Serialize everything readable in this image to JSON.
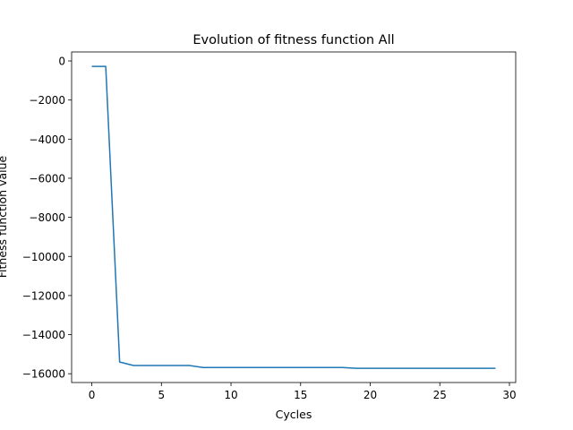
{
  "chart_data": {
    "type": "line",
    "title": "Evolution of fitness function All",
    "xlabel": "Cycles",
    "ylabel": "Fitness function value",
    "xlim": [
      -1.45,
      30.45
    ],
    "ylim": [
      -16450,
      460
    ],
    "xticks": [
      0,
      5,
      10,
      15,
      20,
      25,
      30
    ],
    "yticks": [
      0,
      -2000,
      -4000,
      -6000,
      -8000,
      -10000,
      -12000,
      -14000,
      -16000
    ],
    "xtick_labels": [
      "0",
      "5",
      "10",
      "15",
      "20",
      "25",
      "30"
    ],
    "ytick_labels": [
      "0",
      "−2000",
      "−4000",
      "−6000",
      "−8000",
      "−10000",
      "−12000",
      "−14000",
      "−16000"
    ],
    "grid": false,
    "line_color": "#1f77b4",
    "series": [
      {
        "x": [
          0,
          1,
          2,
          3,
          4,
          5,
          6,
          7,
          8,
          9,
          10,
          11,
          12,
          13,
          14,
          15,
          16,
          17,
          18,
          19,
          20,
          21,
          22,
          23,
          24,
          25,
          26,
          27,
          28,
          29
        ],
        "y": [
          -280,
          -280,
          -15400,
          -15580,
          -15580,
          -15580,
          -15580,
          -15580,
          -15680,
          -15680,
          -15680,
          -15680,
          -15680,
          -15680,
          -15680,
          -15680,
          -15680,
          -15680,
          -15680,
          -15720,
          -15720,
          -15720,
          -15720,
          -15720,
          -15720,
          -15720,
          -15720,
          -15720,
          -15720,
          -15720
        ]
      }
    ]
  }
}
